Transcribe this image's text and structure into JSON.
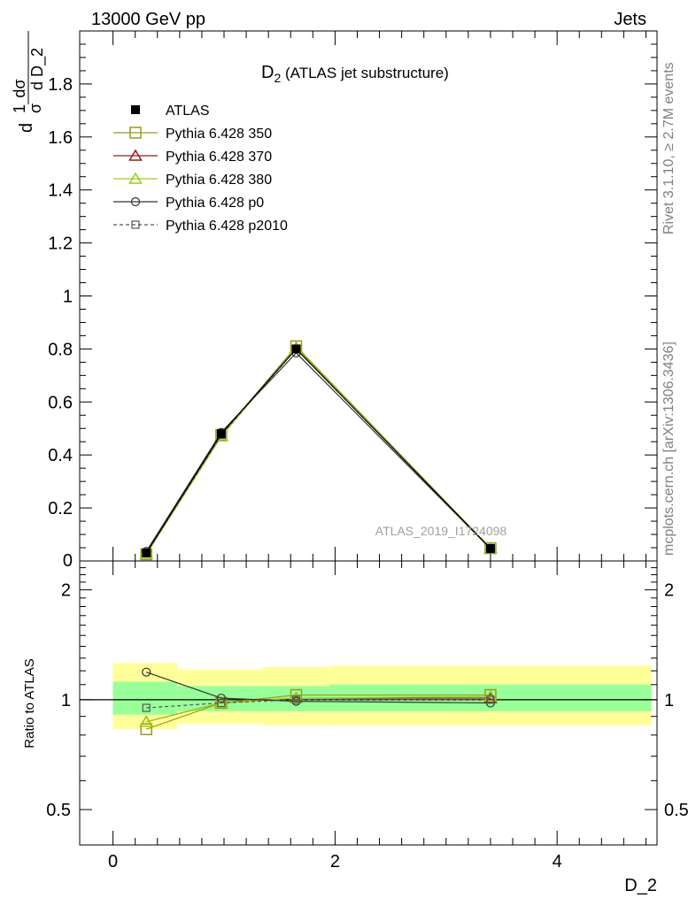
{
  "header": {
    "left": "13000 GeV pp",
    "right": "Jets"
  },
  "side_text": {
    "top": "Rivet 3.1.10, ≥ 2.7M events",
    "bottom": "mcplots.cern.ch [arXiv:1306.3436]"
  },
  "analysis_id": "ATLAS_2019_I1724098",
  "colors": {
    "atlas": "#000000",
    "p350": "#9a9a1c",
    "p370": "#9b1b1b",
    "p380": "#9acd1a",
    "p0": "#333333",
    "p2010": "#555555",
    "band_inner": "#99ff99",
    "band_outer": "#ffff99"
  },
  "chart_data": [
    {
      "type": "line",
      "title_main": "D",
      "title_sub": "2",
      "title_rest": " (ATLAS jet substructure)",
      "ylabel": {
        "a_num": "1",
        "a_den": "σ",
        "b_num": "dσ",
        "b_den": "d D_2",
        "d": "d"
      },
      "xlim": [
        -0.3,
        4.9
      ],
      "ylim": [
        0,
        2.0
      ],
      "yticks": [
        "0.2",
        "0.4",
        "0.6",
        "0.8",
        "1",
        "1.2",
        "1.4",
        "1.6",
        "1.8"
      ],
      "y_bottom_label": "0",
      "x": [
        0.3,
        0.975,
        1.65,
        3.4
      ],
      "series": [
        {
          "name": "ATLAS",
          "style": "data",
          "values": [
            0.03,
            0.48,
            0.8,
            0.047
          ]
        },
        {
          "name": "Pythia 6.428 350",
          "style": "p350",
          "values": [
            0.025,
            0.475,
            0.81,
            0.048
          ]
        },
        {
          "name": "Pythia 6.428 370",
          "style": "p370",
          "values": [
            0.026,
            0.47,
            0.805,
            0.048
          ]
        },
        {
          "name": "Pythia 6.428 380",
          "style": "p380",
          "values": [
            0.026,
            0.47,
            0.805,
            0.048
          ]
        },
        {
          "name": "Pythia 6.428 p0",
          "style": "p0",
          "values": [
            0.036,
            0.485,
            0.785,
            0.046
          ]
        },
        {
          "name": "Pythia 6.428 p2010",
          "style": "p2010",
          "values": [
            0.029,
            0.475,
            0.8,
            0.047
          ]
        }
      ]
    },
    {
      "type": "line",
      "ylabel": "Ratio to ATLAS",
      "xlabel": "D_2",
      "yscale": "log",
      "ylim": [
        0.4,
        2.4
      ],
      "yticks": [
        "0.5",
        "1",
        "2"
      ],
      "xticks": [
        "0",
        "2",
        "4"
      ],
      "x": [
        0.3,
        0.975,
        1.65,
        3.4
      ],
      "bins": [
        [
          0.0,
          0.58
        ],
        [
          0.58,
          1.35
        ],
        [
          1.35,
          1.95
        ],
        [
          1.95,
          4.85
        ]
      ],
      "band_inner": [
        [
          0.91,
          1.12
        ],
        [
          0.93,
          1.09
        ],
        [
          0.93,
          1.09
        ],
        [
          0.93,
          1.1
        ]
      ],
      "band_outer": [
        [
          0.83,
          1.26
        ],
        [
          0.86,
          1.21
        ],
        [
          0.85,
          1.23
        ],
        [
          0.85,
          1.24
        ]
      ],
      "series": [
        {
          "name": "Pythia 6.428 350",
          "style": "p350",
          "values": [
            0.83,
            0.98,
            1.03,
            1.03
          ]
        },
        {
          "name": "Pythia 6.428 370",
          "style": "p370",
          "values": [
            0.87,
            0.98,
            1.01,
            1.01
          ]
        },
        {
          "name": "Pythia 6.428 380",
          "style": "p380",
          "values": [
            0.87,
            0.98,
            1.01,
            1.02
          ]
        },
        {
          "name": "Pythia 6.428 p0",
          "style": "p0",
          "values": [
            1.19,
            1.01,
            0.99,
            0.98
          ]
        },
        {
          "name": "Pythia 6.428 p2010",
          "style": "p2010",
          "values": [
            0.95,
            0.98,
            1.0,
            1.0
          ]
        }
      ]
    }
  ]
}
